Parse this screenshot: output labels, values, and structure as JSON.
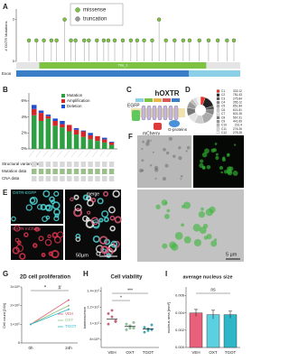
{
  "panels": {
    "a": {
      "label": "A",
      "y_axis_label": "# OXTR Mutations",
      "ylim": [
        0,
        2.5
      ],
      "yticks": [
        0,
        2
      ],
      "xlim": [
        0,
        389
      ],
      "legend": [
        {
          "name": "missense",
          "color": "#7dc242"
        },
        {
          "name": "truncation",
          "color": "#999999"
        }
      ],
      "mutation_positions": [
        22,
        35,
        48,
        61,
        70,
        84,
        95,
        103,
        118,
        126,
        140,
        152,
        160,
        171,
        185,
        199,
        210,
        222,
        236,
        248,
        260,
        275,
        290,
        301,
        318,
        334,
        350,
        366,
        378
      ],
      "mutation_counts": [
        1,
        1,
        1,
        1,
        1,
        2,
        1,
        1,
        1,
        1,
        1,
        1,
        1,
        1,
        1,
        1,
        1,
        1,
        1,
        2,
        1,
        1,
        1,
        1,
        1,
        1,
        1,
        1,
        1
      ],
      "domain_label": "7tm_1",
      "exon_label": "Exon"
    },
    "b": {
      "label": "B",
      "ylim": [
        0,
        7
      ],
      "yticks": [
        {
          "value": 0,
          "label": "0%"
        },
        {
          "value": 2,
          "label": "2%"
        },
        {
          "value": 4,
          "label": "4%"
        },
        {
          "value": 6,
          "label": "6%"
        }
      ],
      "series": [
        {
          "name": "Mutation",
          "color": "#2ea043",
          "values": [
            4.2,
            3.5,
            3.8,
            2.9,
            2.7,
            2.2,
            1.8,
            1.5,
            1.2,
            1.0,
            0.8,
            0.5
          ]
        },
        {
          "name": "Amplification",
          "color": "#d62728",
          "values": [
            0.8,
            1.0,
            0.3,
            0.6,
            0.4,
            0.8,
            0.6,
            0.7,
            0.5,
            0.6,
            0.4,
            0.3
          ]
        },
        {
          "name": "Deletion",
          "color": "#1f4fd1",
          "values": [
            0.5,
            0.3,
            0.2,
            0.3,
            0.4,
            0,
            0.2,
            0.1,
            0.3,
            0,
            0.2,
            0.1
          ]
        }
      ],
      "row_labels": [
        "Structural variant data",
        "Mutation data",
        "CNA data"
      ]
    },
    "c": {
      "label": "C",
      "title": "hOXTR",
      "egfp": "EGFP",
      "mcherry": "mCherry",
      "gproteins": "G-proteins"
    },
    "d": {
      "label": "D",
      "slices": [
        {
          "name": "C1",
          "value": 333.12,
          "color": "#e8332a"
        },
        {
          "name": "C2",
          "value": 781.43,
          "color": "#222222"
        },
        {
          "name": "C3",
          "value": 275.84,
          "color": "#555555"
        },
        {
          "name": "C4",
          "value": 355.12,
          "color": "#888888"
        },
        {
          "name": "C5",
          "value": 851.84,
          "color": "#aaaaaa"
        },
        {
          "name": "C6",
          "value": 621.81,
          "color": "#cccccc"
        },
        {
          "name": "C7",
          "value": 601.26,
          "color": "#e4e4e4"
        },
        {
          "name": "C8",
          "value": 567.31,
          "color": "#777777"
        },
        {
          "name": "C9",
          "value": 441.69,
          "color": "#999999"
        },
        {
          "name": "C10",
          "value": 231.4,
          "color": "#bbbbbb"
        },
        {
          "name": "C11",
          "value": 276.26,
          "color": "#dddddd"
        },
        {
          "name": "C12",
          "value": 278.28,
          "color": "#f2f2f2"
        }
      ]
    },
    "e": {
      "label": "E",
      "egfp_label": "OXTR-EGFP",
      "mcherry_label": "OXTR-mCherry",
      "merge_label": "merge",
      "scale_bar": "50µm"
    },
    "f": {
      "label": "F",
      "scale_bar": "5 µm"
    },
    "g": {
      "label": "G",
      "title": "2D cell proliferation",
      "y_axis_label": "Cell count [24h]",
      "categories": [
        "0h",
        "24h"
      ],
      "ylim": [
        0,
        300000
      ],
      "yticks": [
        0,
        {
          "value": 100000,
          "label": "1×10⁵"
        },
        {
          "value": 200000,
          "label": "2×10⁵"
        },
        {
          "value": 300000,
          "label": "3×10⁵"
        }
      ],
      "series": [
        {
          "name": "VEH",
          "color": "#e05a6b",
          "values": [
            100000,
            230000
          ]
        },
        {
          "name": "OXT",
          "color": "#8fbf7f",
          "values": [
            100000,
            200000
          ]
        },
        {
          "name": "TGOT",
          "color": "#2fb7c7",
          "values": [
            100000,
            180000
          ]
        }
      ],
      "annotations": [
        "*",
        "#"
      ]
    },
    "h": {
      "label": "H",
      "title": "Cell viability",
      "y_axis_label": "luminescence",
      "categories": [
        "VEH",
        "OXT",
        "TGOT"
      ],
      "ylim": [
        7000000,
        14500000
      ],
      "yticks": [
        {
          "value": 8000000,
          "label": "8×10⁶"
        },
        {
          "value": 10000000,
          "label": "1×10⁷"
        },
        {
          "value": 12000000,
          "label": "1.2×10⁷"
        },
        {
          "value": 14000000,
          "label": "1.4×10⁷"
        }
      ],
      "means": [
        10500000,
        9600000,
        9300000
      ],
      "points": [
        [
          11200000,
          10800000,
          10200000,
          9900000,
          11600000,
          10300000
        ],
        [
          9900000,
          9400000,
          10100000,
          9200000,
          9700000,
          9400000
        ],
        [
          9500000,
          9100000,
          9800000,
          8900000,
          9300000,
          9200000
        ]
      ],
      "colors": [
        "#e8607a",
        "#8fd3a0",
        "#2fb7c7"
      ],
      "annotations": [
        "***",
        "*"
      ]
    },
    "i": {
      "label": "I",
      "title": "average nucleus size",
      "y_axis_label": "nucleus area [mm²]",
      "categories": [
        "VEH",
        "OXT",
        "TGOT"
      ],
      "ylim": [
        0,
        0.007
      ],
      "yticks": [
        {
          "value": 0,
          "label": "0.000"
        },
        0.002,
        0.004,
        0.006
      ],
      "values": [
        0.004,
        0.0038,
        0.0038
      ],
      "errors": [
        0.0004,
        0.0005,
        0.0004
      ],
      "colors": [
        "#e8607a",
        "#5bd0e0",
        "#2fb7c7"
      ],
      "annotation": "ns"
    }
  }
}
